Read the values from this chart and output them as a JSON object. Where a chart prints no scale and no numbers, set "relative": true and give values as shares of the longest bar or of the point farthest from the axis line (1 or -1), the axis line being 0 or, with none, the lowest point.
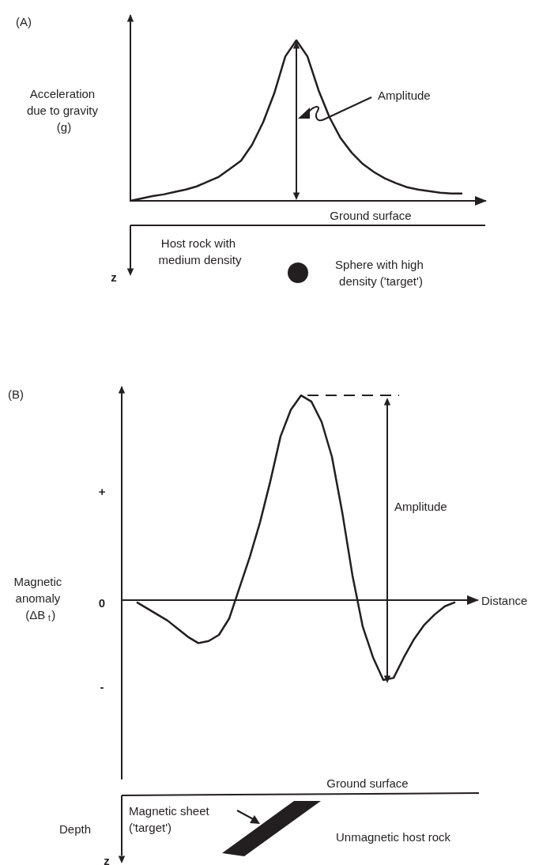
{
  "chart_data": [
    {
      "type": "line",
      "ylabel": "Acceleration due to gravity (g)",
      "relative": true,
      "marker": "none",
      "categories": [
        null,
        null,
        null,
        null,
        null,
        null,
        null,
        null,
        null,
        null,
        null,
        null,
        null,
        null,
        null,
        null,
        null,
        null,
        null,
        null,
        null,
        null,
        null,
        null,
        null,
        null,
        null,
        null,
        null,
        null,
        null
      ],
      "series": [
        {
          "color": "#231f20",
          "values": [
            0,
            0.015,
            0.03,
            0.04,
            0.055,
            0.07,
            0.09,
            0.12,
            0.15,
            0.2,
            0.25,
            0.35,
            0.49,
            0.67,
            0.9,
            1,
            0.9,
            0.69,
            0.52,
            0.39,
            0.3,
            0.23,
            0.18,
            0.14,
            0.11,
            0.085,
            0.07,
            0.06,
            0.05,
            0.045,
            0.045
          ]
        }
      ],
      "annotations": [
        "(A)",
        "Amplitude",
        "Ground surface",
        "Host rock with medium density",
        "Sphere with high density ('target')",
        "z"
      ]
    },
    {
      "type": "line",
      "ylabel": "Magnetic anomaly (ΔB$_{t}$)",
      "xlabel": "Distance",
      "relative": true,
      "marker": "none",
      "categories": [
        null,
        null,
        null,
        null,
        null,
        null,
        null,
        null,
        null,
        null,
        null,
        null,
        null,
        null,
        null,
        null,
        null,
        null,
        null,
        null,
        null,
        null,
        null,
        null,
        null,
        null,
        null,
        null,
        null,
        null,
        null,
        null
      ],
      "series": [
        {
          "color": "#231f20",
          "values": [
            -0.01,
            -0.04,
            -0.07,
            -0.1,
            -0.14,
            -0.18,
            -0.21,
            -0.2,
            -0.17,
            -0.09,
            0.06,
            0.21,
            0.38,
            0.58,
            0.8,
            0.93,
            1,
            0.97,
            0.87,
            0.7,
            0.43,
            0.12,
            -0.13,
            -0.28,
            -0.39,
            -0.38,
            -0.28,
            -0.19,
            -0.12,
            -0.07,
            -0.03,
            -0.01
          ]
        }
      ],
      "annotations": [
        "(B)",
        "+",
        "0",
        "-",
        "Amplitude",
        "Ground surface",
        "Magnetic sheet ('target')",
        "Depth",
        "Unmagnetic host rock",
        "z"
      ]
    }
  ]
}
